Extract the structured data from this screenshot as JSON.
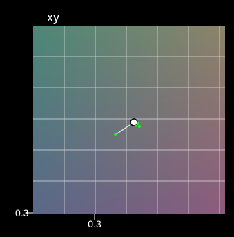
{
  "panel": {
    "title": "xy",
    "y_axis_label": "0.3",
    "x_axis_label": "0.3"
  }
}
